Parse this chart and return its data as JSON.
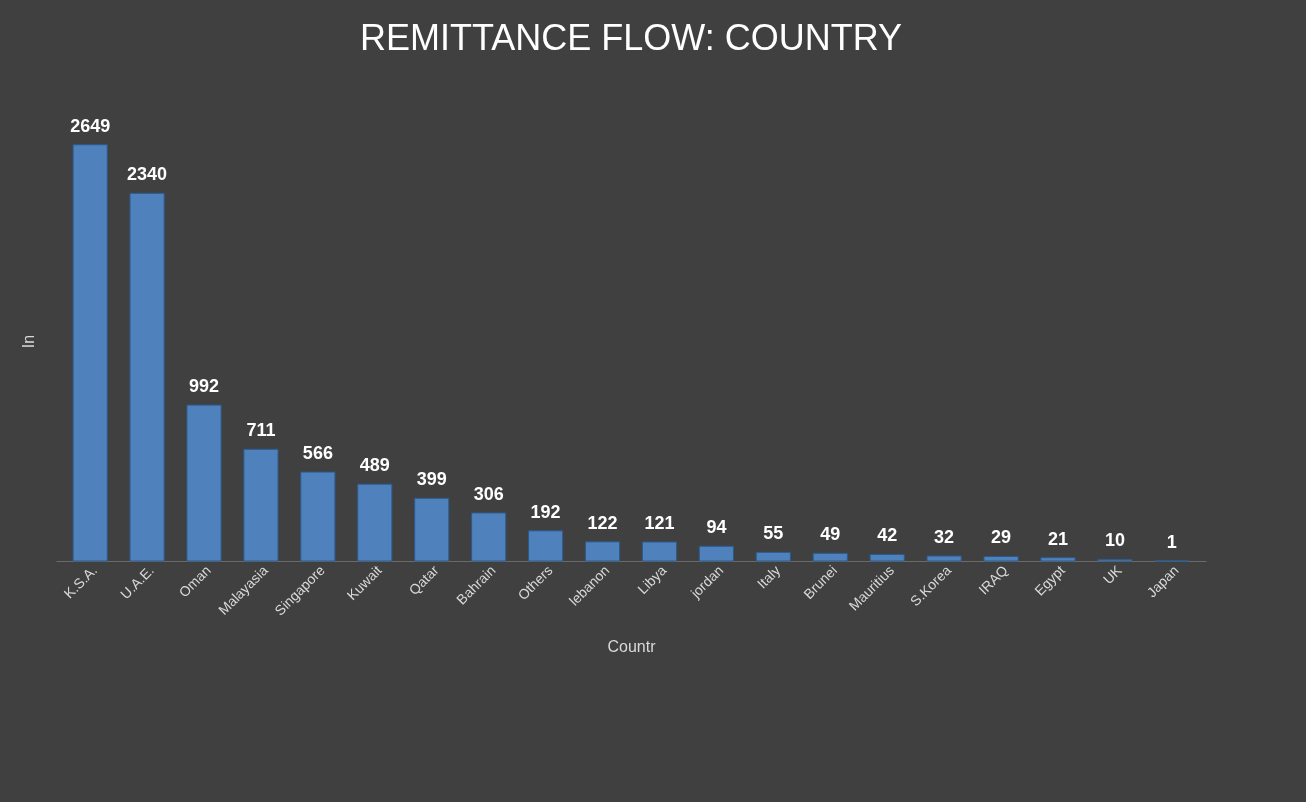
{
  "chart_data": {
    "type": "bar",
    "title": "REMITTANCE FLOW: COUNTRY",
    "xlabel": "Countr",
    "ylabel": "In",
    "categories": [
      "K.S.A.",
      "U.A.E.",
      "Oman",
      "Malayasia",
      "Singapore",
      "Kuwait",
      "Qatar",
      "Bahrain",
      "Others",
      "lebanon",
      "Libya",
      "jordan",
      "Italy",
      "Brunei",
      "Mauritius",
      "S.Korea",
      "IRAQ",
      "Egypt",
      "UK",
      "Japan"
    ],
    "values": [
      2649,
      2340,
      992,
      711,
      566,
      489,
      399,
      306,
      192,
      122,
      121,
      94,
      55,
      49,
      42,
      32,
      29,
      21,
      10,
      1
    ],
    "color": "#4f81bd",
    "data_labels": true
  }
}
